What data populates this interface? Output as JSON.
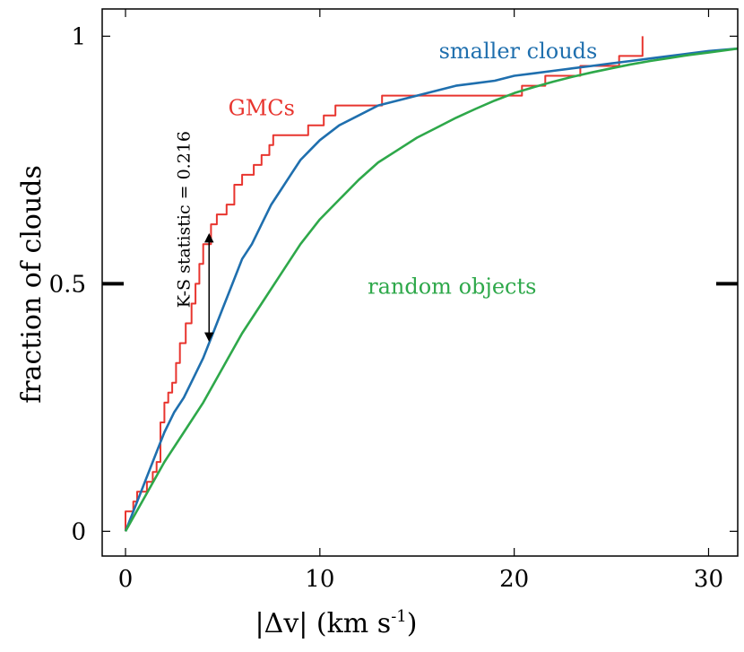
{
  "chart_data": {
    "type": "line",
    "title": "",
    "xlabel": "|Δv|   (km s",
    "xlabel_sup": "-1",
    "xlabel_close": ")",
    "ylabel": "fraction of clouds",
    "xlim": [
      -1.2,
      31.5
    ],
    "ylim": [
      -0.05,
      1.055
    ],
    "x_ticks": [
      0,
      10,
      20,
      30
    ],
    "x_tick_labels": [
      "0",
      "10",
      "20",
      "30"
    ],
    "y_ticks": [
      0,
      0.5,
      1
    ],
    "y_tick_labels": [
      "0",
      "0.5",
      "1"
    ],
    "grid": false,
    "legend": "inline labels",
    "series": [
      {
        "name": "GMCs",
        "style": "step",
        "color": "#e8352f",
        "x": [
          0,
          0,
          0.4,
          0.4,
          0.6,
          0.6,
          0.8,
          0.8,
          1.1,
          1.1,
          1.4,
          1.4,
          1.6,
          1.6,
          1.8,
          1.8,
          2.0,
          2.0,
          2.2,
          2.2,
          2.4,
          2.4,
          2.6,
          2.6,
          2.8,
          2.8,
          3.1,
          3.1,
          3.4,
          3.4,
          3.6,
          3.6,
          3.8,
          3.8,
          4.0,
          4.0,
          4.4,
          4.4,
          4.7,
          4.7,
          5.2,
          5.2,
          5.6,
          5.6,
          6.0,
          6.0,
          6.6,
          6.6,
          7.0,
          7.0,
          7.4,
          7.4,
          7.6,
          7.6,
          9.4,
          9.4,
          10.2,
          10.2,
          10.8,
          10.8,
          13.2,
          13.2,
          20.4,
          20.4,
          21.6,
          21.6,
          23.4,
          23.4,
          25.4,
          25.4,
          26.6,
          26.6
        ],
        "y": [
          0,
          0.04,
          0.04,
          0.06,
          0.06,
          0.08,
          0.08,
          0.08,
          0.08,
          0.1,
          0.1,
          0.12,
          0.12,
          0.14,
          0.14,
          0.22,
          0.22,
          0.26,
          0.26,
          0.28,
          0.28,
          0.3,
          0.3,
          0.34,
          0.34,
          0.38,
          0.38,
          0.42,
          0.42,
          0.46,
          0.46,
          0.5,
          0.5,
          0.54,
          0.54,
          0.58,
          0.58,
          0.62,
          0.62,
          0.64,
          0.64,
          0.66,
          0.66,
          0.7,
          0.7,
          0.72,
          0.72,
          0.74,
          0.74,
          0.76,
          0.76,
          0.78,
          0.78,
          0.8,
          0.8,
          0.82,
          0.82,
          0.84,
          0.84,
          0.86,
          0.86,
          0.88,
          0.88,
          0.9,
          0.9,
          0.92,
          0.92,
          0.94,
          0.94,
          0.96,
          0.96,
          1.0
        ]
      },
      {
        "name": "smaller clouds",
        "style": "line",
        "color": "#1f6fae",
        "x": [
          0,
          0.5,
          1,
          1.5,
          2,
          2.5,
          3,
          3.5,
          4,
          4.5,
          5,
          5.5,
          6,
          6.5,
          7,
          7.5,
          8,
          8.5,
          9,
          9.5,
          10,
          11,
          12,
          13,
          14,
          15,
          16,
          17,
          18,
          19,
          20,
          21,
          22,
          23,
          24,
          25,
          26,
          27,
          28,
          29,
          30,
          31.5
        ],
        "y": [
          0,
          0.05,
          0.1,
          0.15,
          0.2,
          0.24,
          0.27,
          0.31,
          0.35,
          0.4,
          0.45,
          0.5,
          0.55,
          0.58,
          0.62,
          0.66,
          0.69,
          0.72,
          0.75,
          0.77,
          0.79,
          0.82,
          0.84,
          0.86,
          0.87,
          0.88,
          0.89,
          0.9,
          0.905,
          0.91,
          0.92,
          0.925,
          0.93,
          0.935,
          0.94,
          0.945,
          0.95,
          0.955,
          0.96,
          0.965,
          0.97,
          0.975
        ]
      },
      {
        "name": "random objects",
        "style": "line",
        "color": "#2ea84a",
        "x": [
          0,
          1,
          2,
          3,
          4,
          5,
          6,
          7,
          8,
          9,
          10,
          11,
          12,
          13,
          14,
          15,
          16,
          17,
          18,
          19,
          20,
          21,
          22,
          23,
          24,
          25,
          26,
          27,
          28,
          29,
          30,
          31.5
        ],
        "y": [
          0,
          0.07,
          0.14,
          0.2,
          0.26,
          0.33,
          0.4,
          0.46,
          0.52,
          0.58,
          0.63,
          0.67,
          0.71,
          0.745,
          0.77,
          0.795,
          0.815,
          0.835,
          0.853,
          0.87,
          0.885,
          0.897,
          0.908,
          0.918,
          0.927,
          0.935,
          0.943,
          0.95,
          0.956,
          0.962,
          0.967,
          0.975
        ]
      }
    ],
    "annotations": [
      {
        "text": "GMCs",
        "x": 7.0,
        "y": 0.84,
        "color": "#e8352f"
      },
      {
        "text": "smaller clouds",
        "x": 20.2,
        "y": 0.955,
        "color": "#1f6fae"
      },
      {
        "text": "random objects",
        "x": 16.8,
        "y": 0.48,
        "color": "#2ea84a"
      },
      {
        "text": "K-S statistic = 0.216",
        "x": 3.3,
        "y": 0.63,
        "color": "#000000",
        "rotate": -90
      }
    ],
    "ks_arrow": {
      "x": 4.3,
      "y_from": 0.385,
      "y_to": 0.6,
      "color": "#000000"
    }
  }
}
